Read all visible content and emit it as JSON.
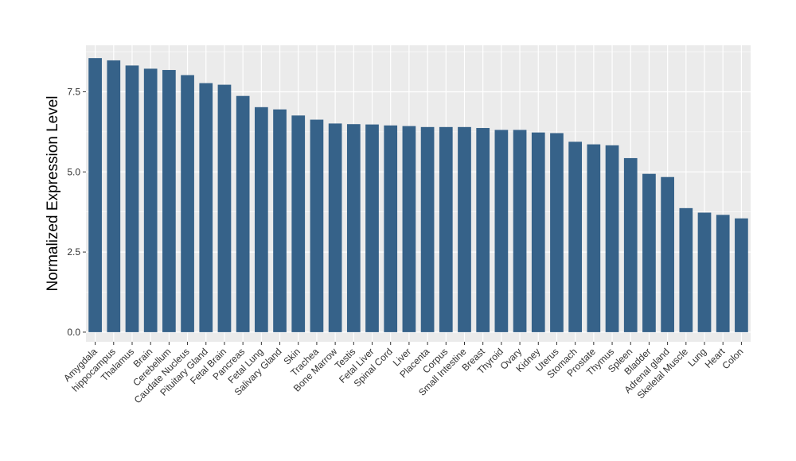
{
  "chart_data": {
    "type": "bar",
    "title": "",
    "xlabel": "",
    "ylabel": "Normalized Expression Level",
    "ylim": [
      -0.3,
      8.95
    ],
    "yticks": [
      0.0,
      2.5,
      5.0,
      7.5
    ],
    "ytick_labels": [
      "0.0",
      "2.5",
      "5.0",
      "7.5"
    ],
    "grid": true,
    "bar_color": "#366289",
    "panel_color": "#ebebeb",
    "grid_color": "#ffffff",
    "categories": [
      "Amygdala",
      "hippocampus",
      "Thalamus",
      "Brain",
      "Cerebellum",
      "Caudate Nucleus",
      "Pituitary Gland",
      "Fetal Brain",
      "Pancreas",
      "Fetal Lung",
      "Salivary Gland",
      "Skin",
      "Trachea",
      "Bone Marrow",
      "Testis",
      "Fetal Liver",
      "Spinal Cord",
      "Liver",
      "Placenta",
      "Corpus",
      "Small Intestine",
      "Breast",
      "Thyroid",
      "Ovary",
      "Kidney",
      "Uterus",
      "Stomach",
      "Prostate",
      "Thymus",
      "Spleen",
      "Bladder",
      "Adrenal gland",
      "Skeletal Muscle",
      "Lung",
      "Heart",
      "Colon"
    ],
    "values": [
      8.55,
      8.48,
      8.32,
      8.22,
      8.18,
      8.02,
      7.77,
      7.72,
      7.37,
      7.02,
      6.95,
      6.76,
      6.63,
      6.51,
      6.49,
      6.48,
      6.45,
      6.43,
      6.4,
      6.4,
      6.4,
      6.37,
      6.31,
      6.31,
      6.23,
      6.21,
      5.94,
      5.86,
      5.83,
      5.43,
      4.94,
      4.84,
      3.87,
      3.73,
      3.66,
      3.55
    ]
  }
}
